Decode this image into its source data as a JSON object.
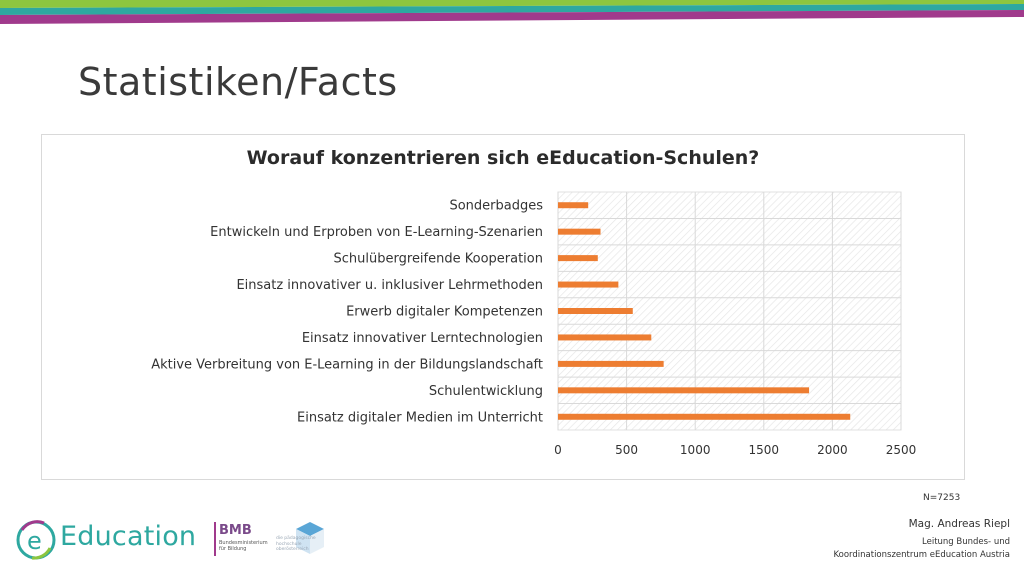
{
  "slide": {
    "title": "Statistiken/Facts",
    "sample_size": "N=7253"
  },
  "chart_data": {
    "type": "bar",
    "orientation": "horizontal",
    "title": "Worauf konzentrieren sich eEducation-Schulen?",
    "categories": [
      "Sonderbadges",
      "Entwickeln und Erproben von E-Learning-Szenarien",
      "Schulübergreifende Kooperation",
      "Einsatz innovativer u. inklusiver Lehrmethoden",
      "Erwerb digitaler Kompetenzen",
      "Einsatz innovativer Lerntechnologien",
      "Aktive Verbreitung von E-Learning in der Bildungslandschaft",
      "Schulentwicklung",
      "Einsatz digitaler Medien im Unterricht"
    ],
    "values": [
      220,
      310,
      290,
      440,
      545,
      680,
      770,
      1830,
      2130
    ],
    "xlim": [
      0,
      2500
    ],
    "xticks": [
      0,
      500,
      1000,
      1500,
      2000,
      2500
    ],
    "xtick_labels": [
      "0",
      "500",
      "1000",
      "1500",
      "2000",
      "2500"
    ],
    "grid": true,
    "legend": "none",
    "bar_color": "#ed7d31"
  },
  "footer": {
    "logo_edu": "eEducation",
    "logo_edu_prefix": "e",
    "logo_edu_word": "Education",
    "logo_bmb": "BMB",
    "logo_bmb_sub": "Bundesministerium für Bildung",
    "logo_ph": "die pädagogische hochschule oberösterreich",
    "presenter_name": "Mag. Andreas Riepl",
    "presenter_role_line1": "Leitung Bundes- und",
    "presenter_role_line2": "Koordinationszentrum eEducation Austria"
  },
  "colors": {
    "stripe_green": "#8dc63f",
    "stripe_teal": "#2ea8a0",
    "stripe_magenta": "#a03a8c",
    "accent_teal": "#2ea8a0"
  }
}
